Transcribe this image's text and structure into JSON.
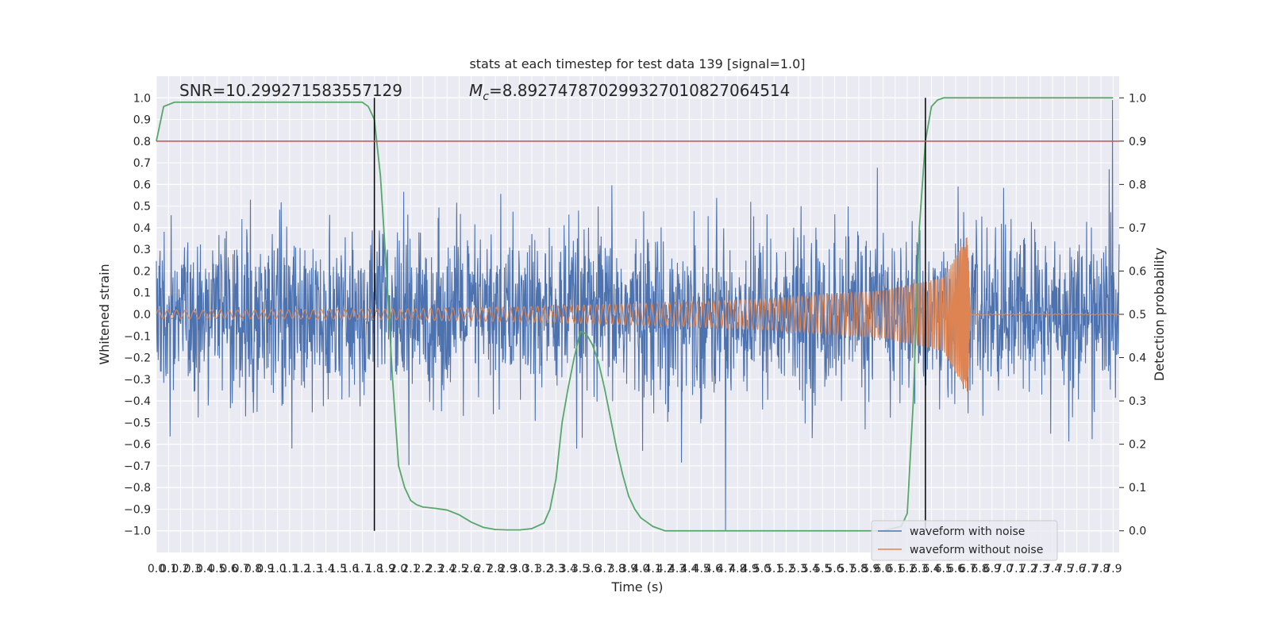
{
  "chart_data": {
    "type": "line",
    "title": "stats at each timestep for test data 139 [signal=1.0]",
    "xlabel": "Time (s)",
    "ylabel": "Whitened strain",
    "y2label": "Detection probability",
    "xlim": [
      0.0,
      7.95
    ],
    "ylim": [
      -1.1,
      1.1
    ],
    "y2lim": [
      -0.05,
      1.05
    ],
    "x_ticks": [
      "0.0",
      "0.1",
      "0.2",
      "0.3",
      "0.4",
      "0.5",
      "0.6",
      "0.7",
      "0.8",
      "0.9",
      "1.0",
      "1.1",
      "1.2",
      "1.3",
      "1.4",
      "1.5",
      "1.6",
      "1.7",
      "1.8",
      "1.9",
      "2.0",
      "2.1",
      "2.2",
      "2.3",
      "2.4",
      "2.5",
      "2.6",
      "2.7",
      "2.8",
      "2.9",
      "3.0",
      "3.1",
      "3.2",
      "3.3",
      "3.4",
      "3.5",
      "3.6",
      "3.7",
      "3.8",
      "3.9",
      "4.0",
      "4.1",
      "4.2",
      "4.3",
      "4.4",
      "4.5",
      "4.6",
      "4.7",
      "4.8",
      "4.9",
      "5.0",
      "5.1",
      "5.2",
      "5.3",
      "5.4",
      "5.5",
      "5.6",
      "5.7",
      "5.8",
      "5.9",
      "6.0",
      "6.1",
      "6.2",
      "6.3",
      "6.4",
      "6.5",
      "6.6",
      "6.7",
      "6.8",
      "6.9",
      "7.0",
      "7.1",
      "7.2",
      "7.3",
      "7.4",
      "7.5",
      "7.6",
      "7.7",
      "7.8",
      "7.9"
    ],
    "y_ticks": [
      "1.0",
      "0.9",
      "0.8",
      "0.7",
      "0.6",
      "0.5",
      "0.4",
      "0.3",
      "0.2",
      "0.1",
      "0.0",
      "−0.1",
      "−0.2",
      "−0.3",
      "−0.4",
      "−0.5",
      "−0.6",
      "−0.7",
      "−0.8",
      "−0.9",
      "−1.0"
    ],
    "y2_ticks": [
      "1.0",
      "0.9",
      "0.8",
      "0.7",
      "0.6",
      "0.5",
      "0.4",
      "0.3",
      "0.2",
      "0.1",
      "0.0"
    ],
    "annotations": {
      "snr": "SNR=10.299271583557129",
      "mc_symbol": "M",
      "mc_sub": "c",
      "mc_value": "=8.892747870299327010827064514"
    },
    "grid": true,
    "legend_position": "lower-right",
    "series": [
      {
        "name": "waveform with noise",
        "color": "#4c72b0",
        "envelope": "noise",
        "approx_range": [
          -1.0,
          1.0
        ]
      },
      {
        "name": "waveform without noise",
        "color": "#dd8452",
        "description_points": {
          "t": [
            0.0,
            1.0,
            2.0,
            3.0,
            4.0,
            5.0,
            6.0,
            6.5,
            6.7,
            6.72
          ],
          "amplitude": [
            0.02,
            0.02,
            0.025,
            0.035,
            0.05,
            0.07,
            0.11,
            0.17,
            0.37,
            0.0
          ]
        }
      },
      {
        "name": "detection probability",
        "color": "#55a868",
        "axis": "right",
        "x": [
          0.0,
          0.06,
          0.15,
          0.3,
          1.7,
          1.75,
          1.8,
          1.85,
          1.9,
          1.95,
          2.0,
          2.05,
          2.1,
          2.15,
          2.2,
          2.3,
          2.4,
          2.5,
          2.6,
          2.7,
          2.8,
          2.9,
          3.0,
          3.1,
          3.2,
          3.25,
          3.3,
          3.35,
          3.4,
          3.45,
          3.5,
          3.55,
          3.6,
          3.65,
          3.7,
          3.75,
          3.8,
          3.85,
          3.9,
          3.95,
          4.0,
          4.05,
          4.1,
          4.2,
          4.5,
          5.5,
          6.0,
          6.15,
          6.2,
          6.25,
          6.3,
          6.35,
          6.4,
          6.45,
          6.5,
          6.6,
          7.9
        ],
        "y": [
          0.9,
          0.98,
          0.99,
          0.99,
          0.99,
          0.98,
          0.95,
          0.82,
          0.6,
          0.35,
          0.15,
          0.1,
          0.07,
          0.06,
          0.055,
          0.052,
          0.048,
          0.037,
          0.02,
          0.008,
          0.003,
          0.002,
          0.002,
          0.005,
          0.018,
          0.05,
          0.12,
          0.25,
          0.33,
          0.4,
          0.46,
          0.455,
          0.43,
          0.39,
          0.33,
          0.26,
          0.19,
          0.13,
          0.08,
          0.05,
          0.03,
          0.02,
          0.01,
          0.0,
          0.0,
          0.0,
          0.0,
          0.01,
          0.04,
          0.3,
          0.7,
          0.9,
          0.98,
          0.995,
          1.0,
          1.0,
          1.0
        ]
      }
    ],
    "threshold_line": {
      "value": 0.9,
      "axis": "right",
      "color": "#c44e52"
    },
    "vertical_markers": {
      "x": [
        1.8,
        6.35
      ],
      "color": "#000000"
    },
    "legend": [
      {
        "label": "waveform with noise",
        "color": "#4c72b0"
      },
      {
        "label": "waveform without noise",
        "color": "#dd8452"
      }
    ],
    "colors": {
      "background": "#eaeaf2",
      "grid": "#ffffff"
    }
  }
}
